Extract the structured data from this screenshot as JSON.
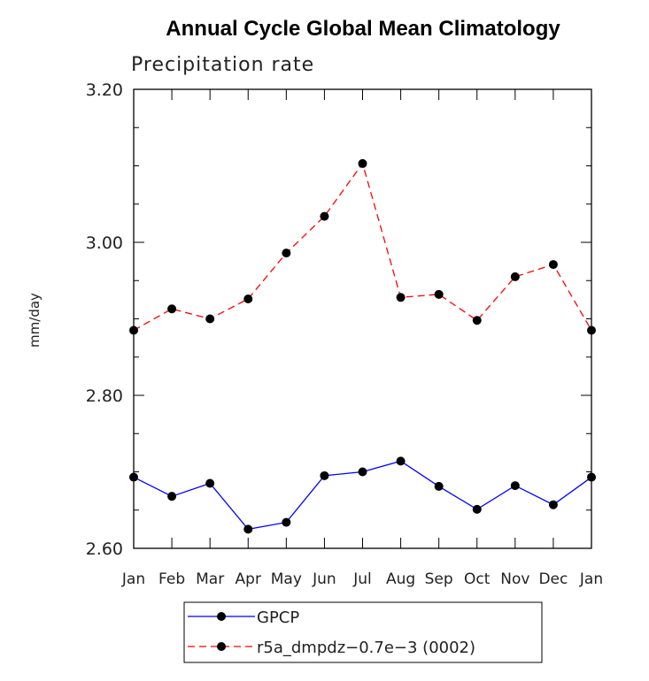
{
  "chart_data": {
    "type": "line",
    "title": "Annual Cycle Global Mean Climatology",
    "subtitle": "Precipitation rate",
    "xlabel": "",
    "ylabel": "mm/day",
    "categories": [
      "Jan",
      "Feb",
      "Mar",
      "Apr",
      "May",
      "Jun",
      "Jul",
      "Aug",
      "Sep",
      "Oct",
      "Nov",
      "Dec",
      "Jan"
    ],
    "ylim": [
      2.6,
      3.2
    ],
    "yticks": [
      "2.60",
      "2.80",
      "3.00",
      "3.20"
    ],
    "yticks_values": [
      2.6,
      2.8,
      3.0,
      3.2
    ],
    "minor_step": 0.05,
    "grid": false,
    "legend_position": "bottom-center",
    "series": [
      {
        "name": "GPCP",
        "color": "#0000ff",
        "style": "solid",
        "marker": "circle",
        "values": [
          2.693,
          2.668,
          2.685,
          2.625,
          2.634,
          2.695,
          2.7,
          2.714,
          2.681,
          2.651,
          2.682,
          2.657,
          2.693
        ]
      },
      {
        "name": "r5a_dmpdz−0.7e−3 (0002)",
        "color": "#ff0000",
        "style": "dashed",
        "marker": "circle",
        "values": [
          2.885,
          2.913,
          2.9,
          2.926,
          2.986,
          3.034,
          3.103,
          2.928,
          2.932,
          2.898,
          2.955,
          2.971,
          2.885
        ]
      }
    ]
  }
}
